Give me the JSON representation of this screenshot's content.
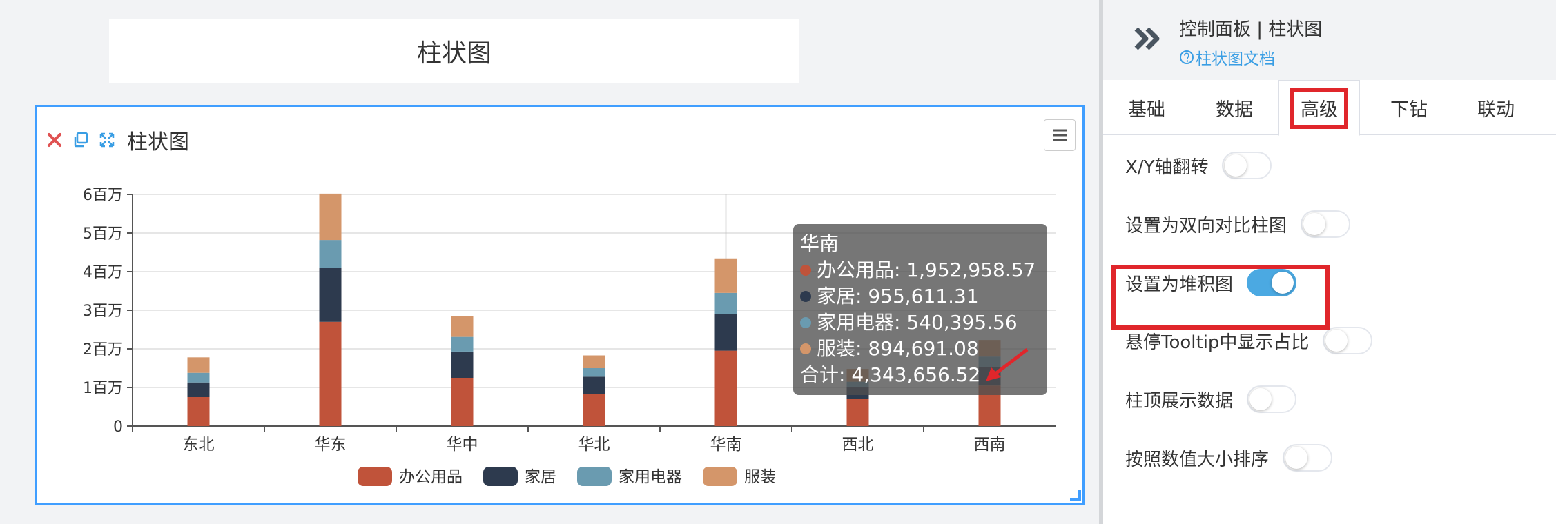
{
  "canvas": {
    "title_card": "柱状图",
    "chart_card_title": "柱状图"
  },
  "chart_data": {
    "type": "bar",
    "stacked": true,
    "categories": [
      "东北",
      "华东",
      "华中",
      "华北",
      "华南",
      "西北",
      "西南"
    ],
    "series": [
      {
        "name": "办公用品",
        "color": "#c0533a",
        "values": [
          750000,
          2700000,
          1250000,
          830000,
          1952958.57,
          700000,
          1050000
        ]
      },
      {
        "name": "家居",
        "color": "#2d3a4e",
        "values": [
          380000,
          1400000,
          680000,
          450000,
          955611.31,
          300000,
          470000
        ]
      },
      {
        "name": "家用电器",
        "color": "#6a9bb0",
        "values": [
          250000,
          720000,
          380000,
          220000,
          540395.56,
          150000,
          280000
        ]
      },
      {
        "name": "服装",
        "color": "#d4966a",
        "values": [
          400000,
          1200000,
          540000,
          330000,
          894691.08,
          330000,
          430000
        ]
      }
    ],
    "yticks": [
      "0",
      "1百万",
      "2百万",
      "3百万",
      "4百万",
      "5百万",
      "6百万"
    ],
    "ylim": [
      0,
      6000000
    ],
    "grid": true,
    "legend_position": "bottom"
  },
  "tooltip": {
    "title": "华南",
    "rows": [
      {
        "label": "办公用品: 1,952,958.57",
        "color": "#c0533a"
      },
      {
        "label": "家居: 955,611.31",
        "color": "#2d3a4e"
      },
      {
        "label": "家用电器: 540,395.56",
        "color": "#6a9bb0"
      },
      {
        "label": "服装: 894,691.08",
        "color": "#d4966a"
      }
    ],
    "total": "合计: 4,343,656.52"
  },
  "panel": {
    "title": "控制面板 | 柱状图",
    "doc_link": "柱状图文档",
    "tabs": [
      "基础",
      "数据",
      "高级",
      "下钻",
      "联动"
    ],
    "active_tab": 2,
    "settings": [
      {
        "label": "X/Y轴翻转",
        "on": false
      },
      {
        "label": "设置为双向对比柱图",
        "on": false
      },
      {
        "label": "设置为堆积图",
        "on": true
      },
      {
        "label": "悬停Tooltip中显示占比",
        "on": false
      },
      {
        "label": "柱顶展示数据",
        "on": false
      },
      {
        "label": "按照数值大小排序",
        "on": false
      }
    ]
  },
  "colors": {
    "accent": "#409eff",
    "switch_on": "#4ba9e2",
    "highlight": "#e0262b",
    "link": "#3a9ee4"
  }
}
